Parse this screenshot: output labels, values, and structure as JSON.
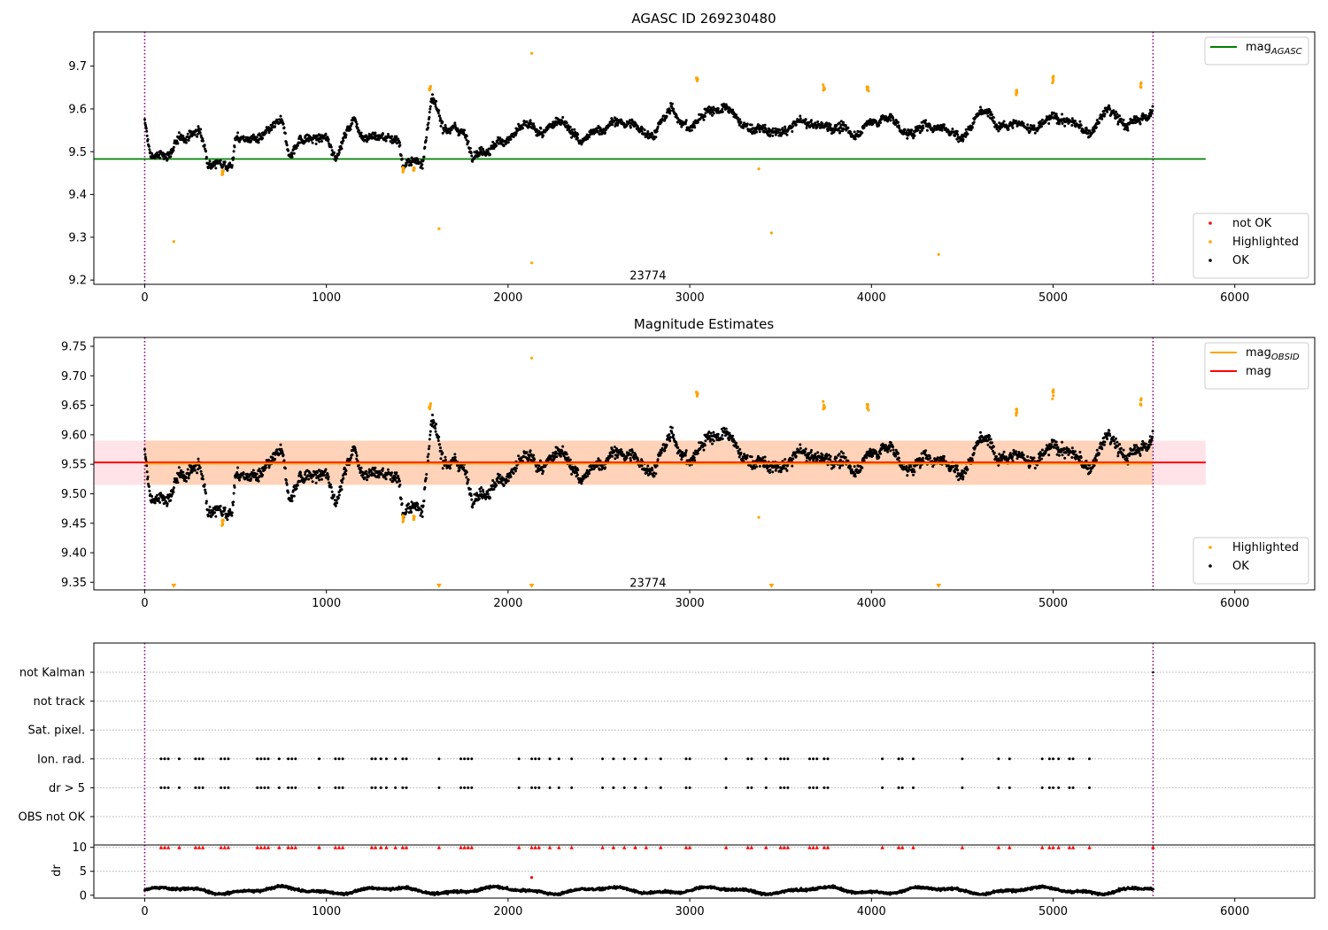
{
  "figure_title": "AGASC ID 269230480",
  "colors": {
    "ok": "#000000",
    "highlighted": "#ffa500",
    "not_ok": "#ff0000",
    "mag_agasc": "#008000",
    "mag_obsid": "#ffa500",
    "mag": "#ff0000",
    "band": "#ffc0cb",
    "band_overlap": "#ffd0b0",
    "vline": "#800080",
    "grid": "#b0b0b0"
  },
  "chart_data": [
    {
      "id": "top",
      "type": "scatter",
      "title": "AGASC ID 269230480",
      "xlim": [
        -280,
        6440
      ],
      "ylim": [
        9.19,
        9.78
      ],
      "xticks": [
        0,
        1000,
        2000,
        3000,
        4000,
        5000,
        6000
      ],
      "yticks": [
        9.2,
        9.3,
        9.4,
        9.5,
        9.6,
        9.7
      ],
      "ytick_decimals": 1,
      "obsid_label": "23774",
      "obsid_label_pos": [
        2770,
        9.21
      ],
      "vlines": [
        0,
        5550
      ],
      "hlines": [
        {
          "name": "mag_AGASC",
          "y": 9.483,
          "x": [
            -280,
            5840
          ],
          "color": "#008000"
        }
      ],
      "series": {
        "ok_trend": [
          [
            0,
            9.57
          ],
          [
            30,
            9.49
          ],
          [
            120,
            9.49
          ],
          [
            200,
            9.53
          ],
          [
            300,
            9.55
          ],
          [
            350,
            9.48
          ],
          [
            480,
            9.47
          ],
          [
            500,
            9.53
          ],
          [
            650,
            9.53
          ],
          [
            750,
            9.57
          ],
          [
            800,
            9.49
          ],
          [
            850,
            9.53
          ],
          [
            1000,
            9.53
          ],
          [
            1050,
            9.49
          ],
          [
            1150,
            9.58
          ],
          [
            1200,
            9.54
          ],
          [
            1400,
            9.53
          ],
          [
            1420,
            9.47
          ],
          [
            1530,
            9.48
          ],
          [
            1580,
            9.62
          ],
          [
            1640,
            9.56
          ],
          [
            1750,
            9.55
          ],
          [
            1800,
            9.5
          ],
          [
            1900,
            9.51
          ],
          [
            2000,
            9.53
          ],
          [
            2100,
            9.56
          ],
          [
            2200,
            9.54
          ],
          [
            2300,
            9.58
          ],
          [
            2400,
            9.52
          ],
          [
            2500,
            9.55
          ],
          [
            2600,
            9.57
          ],
          [
            2700,
            9.56
          ],
          [
            2800,
            9.54
          ],
          [
            2900,
            9.6
          ],
          [
            3000,
            9.55
          ],
          [
            3100,
            9.6
          ],
          [
            3200,
            9.6
          ],
          [
            3300,
            9.56
          ],
          [
            3400,
            9.55
          ],
          [
            3500,
            9.54
          ],
          [
            3600,
            9.57
          ],
          [
            3700,
            9.56
          ],
          [
            3800,
            9.56
          ],
          [
            3900,
            9.54
          ],
          [
            4000,
            9.57
          ],
          [
            4100,
            9.58
          ],
          [
            4200,
            9.54
          ],
          [
            4300,
            9.56
          ],
          [
            4400,
            9.56
          ],
          [
            4500,
            9.53
          ],
          [
            4600,
            9.6
          ],
          [
            4700,
            9.57
          ],
          [
            4800,
            9.57
          ],
          [
            4900,
            9.55
          ],
          [
            5000,
            9.58
          ],
          [
            5100,
            9.57
          ],
          [
            5200,
            9.54
          ],
          [
            5300,
            9.6
          ],
          [
            5400,
            9.56
          ],
          [
            5500,
            9.58
          ],
          [
            5550,
            9.6
          ]
        ],
        "highlighted_clusters": [
          [
            430,
            9.45
          ],
          [
            1420,
            9.46
          ],
          [
            1480,
            9.46
          ],
          [
            1570,
            9.65
          ],
          [
            3040,
            9.67
          ],
          [
            3740,
            9.65
          ],
          [
            3980,
            9.65
          ],
          [
            4800,
            9.64
          ],
          [
            5000,
            9.67
          ],
          [
            5480,
            9.66
          ]
        ],
        "highlighted_outliers": [
          [
            160,
            9.29
          ],
          [
            1620,
            9.32
          ],
          [
            2130,
            9.24
          ],
          [
            2130,
            9.73
          ],
          [
            3380,
            9.46
          ],
          [
            3450,
            9.31
          ],
          [
            4370,
            9.26
          ]
        ],
        "not_ok": []
      },
      "legends": [
        {
          "position": "top-right",
          "entries": [
            {
              "label": "mag",
              "sub": "AGASC",
              "kind": "line",
              "color": "#008000"
            }
          ]
        },
        {
          "position": "bottom-right",
          "entries": [
            {
              "label": "not OK",
              "kind": "dot",
              "color": "#ff0000"
            },
            {
              "label": "Highlighted",
              "kind": "dot",
              "color": "#ffa500"
            },
            {
              "label": "OK",
              "kind": "dot",
              "color": "#000000"
            }
          ]
        }
      ]
    },
    {
      "id": "middle",
      "type": "scatter",
      "title": "Magnitude Estimates",
      "xlim": [
        -280,
        6440
      ],
      "ylim": [
        9.337,
        9.765
      ],
      "xticks": [
        0,
        1000,
        2000,
        3000,
        4000,
        5000,
        6000
      ],
      "yticks": [
        9.35,
        9.4,
        9.45,
        9.5,
        9.55,
        9.6,
        9.65,
        9.7,
        9.75
      ],
      "ytick_decimals": 2,
      "obsid_label": "23774",
      "obsid_label_pos": [
        2770,
        9.348
      ],
      "vlines": [
        0,
        5550
      ],
      "band": {
        "x": [
          -280,
          5840
        ],
        "y": [
          9.515,
          9.59
        ]
      },
      "band_overlap": {
        "x": [
          0,
          5550
        ],
        "y": [
          9.515,
          9.59
        ]
      },
      "hlines": [
        {
          "name": "mag",
          "y": 9.553,
          "x": [
            -280,
            5840
          ],
          "color": "#ff0000"
        },
        {
          "name": "mag_OBSID",
          "y": 9.551,
          "x": [
            0,
            5550
          ],
          "color": "#ffa500"
        }
      ],
      "lower_limit_markers": [
        160,
        1620,
        2130,
        3450,
        4370
      ],
      "legends": [
        {
          "position": "top-right",
          "entries": [
            {
              "label": "mag",
              "sub": "OBSID",
              "kind": "line",
              "color": "#ffa500"
            },
            {
              "label": "mag",
              "kind": "line",
              "color": "#ff0000"
            }
          ]
        },
        {
          "position": "bottom-right",
          "entries": [
            {
              "label": "Highlighted",
              "kind": "dot",
              "color": "#ffa500"
            },
            {
              "label": "OK",
              "kind": "dot",
              "color": "#000000"
            }
          ]
        }
      ]
    },
    {
      "id": "flags",
      "type": "scatter",
      "xlim": [
        -280,
        6440
      ],
      "categories": [
        "not Kalman",
        "not track",
        "Sat. pixel.",
        "Ion. rad.",
        "dr > 5",
        "OBS not OK"
      ],
      "vlines": [
        0,
        5550
      ],
      "flag_times": [
        90,
        110,
        130,
        190,
        280,
        300,
        320,
        420,
        440,
        460,
        620,
        640,
        660,
        680,
        740,
        790,
        810,
        830,
        960,
        1050,
        1070,
        1090,
        1250,
        1270,
        1300,
        1330,
        1380,
        1420,
        1440,
        1620,
        1740,
        1760,
        1780,
        1800,
        2060,
        2130,
        2150,
        2170,
        2230,
        2280,
        2350,
        2520,
        2580,
        2640,
        2700,
        2760,
        2840,
        2980,
        3000,
        3200,
        3320,
        3340,
        3420,
        3500,
        3520,
        3540,
        3660,
        3680,
        3700,
        3740,
        3760,
        4060,
        4150,
        4170,
        4230,
        4500,
        4700,
        4760,
        4940,
        4980,
        5000,
        5030,
        5090,
        5110,
        5200
      ],
      "flag_rows": [
        "Ion. rad.",
        "dr > 5"
      ],
      "not_kalman_times": [
        5550
      ]
    },
    {
      "id": "dr",
      "type": "scatter",
      "ylabel": "dr",
      "xlim": [
        -280,
        6440
      ],
      "ylim": [
        -0.6,
        10.5
      ],
      "xticks": [
        0,
        1000,
        2000,
        3000,
        4000,
        5000,
        6000
      ],
      "yticks": [
        0,
        5,
        10
      ],
      "vlines": [
        0,
        5550
      ],
      "outlier": [
        2130,
        3.7
      ],
      "capped_value": 10,
      "capped_times": [
        90,
        110,
        130,
        190,
        280,
        300,
        320,
        420,
        440,
        460,
        620,
        640,
        660,
        680,
        740,
        790,
        810,
        830,
        960,
        1050,
        1070,
        1090,
        1250,
        1270,
        1300,
        1330,
        1380,
        1420,
        1440,
        1620,
        1740,
        1760,
        1780,
        1800,
        2060,
        2130,
        2150,
        2170,
        2230,
        2280,
        2350,
        2520,
        2580,
        2640,
        2700,
        2760,
        2840,
        2980,
        3000,
        3200,
        3320,
        3340,
        3420,
        3500,
        3520,
        3540,
        3660,
        3680,
        3700,
        3740,
        3760,
        4060,
        4150,
        4170,
        4230,
        4500,
        4700,
        4760,
        4940,
        4980,
        5000,
        5030,
        5090,
        5110,
        5200,
        5550
      ]
    }
  ]
}
